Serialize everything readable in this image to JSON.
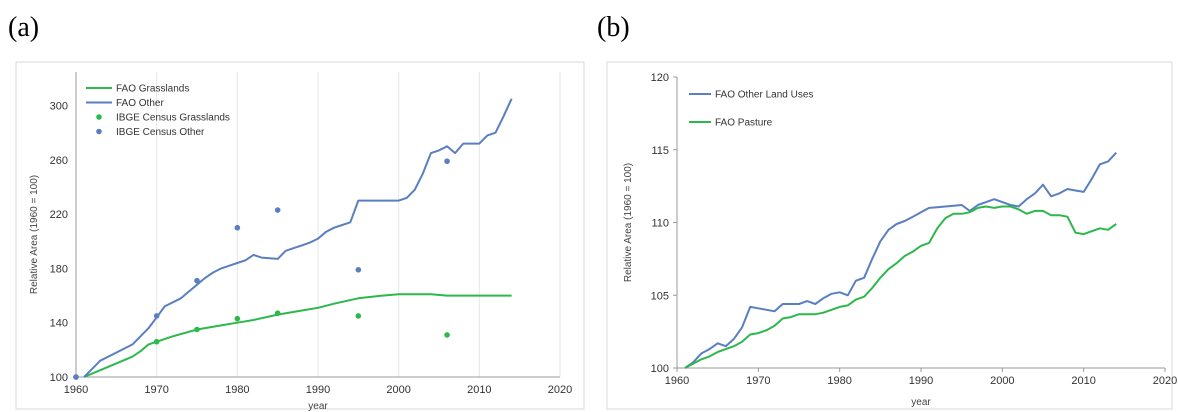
{
  "panels": {
    "a": {
      "label": "(a)"
    },
    "b": {
      "label": "(b)"
    }
  },
  "chart_data": [
    {
      "type": "line",
      "panel": "(a)",
      "xlabel": "year",
      "ylabel": "Relative Area (1960 = 100)",
      "xlim": [
        1960,
        2020
      ],
      "ylim": [
        100,
        310
      ],
      "xticks": [
        1960,
        1970,
        1980,
        1990,
        2000,
        2010,
        2020
      ],
      "yticks": [
        100,
        140,
        180,
        220,
        260,
        300
      ],
      "grid": "vertical",
      "legend_position": "top-left",
      "colors": {
        "green": "#2db84b",
        "blue": "#5a7fc0"
      },
      "series": [
        {
          "name": "FAO Grasslands",
          "kind": "line",
          "color": "#2db84b",
          "x": [
            1961,
            1963,
            1965,
            1967,
            1968,
            1969,
            1970,
            1972,
            1975,
            1978,
            1980,
            1982,
            1985,
            1988,
            1990,
            1992,
            1995,
            1998,
            2000,
            2002,
            2004,
            2006,
            2010,
            2014
          ],
          "y": [
            100,
            105,
            110,
            115,
            119,
            124,
            126,
            130,
            135,
            138,
            140,
            142,
            146,
            149,
            151,
            154,
            158,
            160,
            161,
            161,
            161,
            160,
            160,
            160
          ]
        },
        {
          "name": "FAO Other",
          "kind": "line",
          "color": "#5a7fc0",
          "x": [
            1961,
            1962,
            1963,
            1965,
            1967,
            1968,
            1969,
            1970,
            1971,
            1973,
            1974,
            1975,
            1976,
            1977,
            1978,
            1979,
            1980,
            1981,
            1982,
            1983,
            1985,
            1986,
            1987,
            1988,
            1989,
            1990,
            1991,
            1992,
            1993,
            1994,
            1995,
            1996,
            1998,
            2000,
            2001,
            2002,
            2003,
            2004,
            2005,
            2006,
            2007,
            2008,
            2010,
            2011,
            2012,
            2013,
            2014
          ],
          "y": [
            100,
            106,
            112,
            118,
            124,
            130,
            136,
            144,
            152,
            158,
            163,
            168,
            173,
            177,
            180,
            182,
            184,
            186,
            190,
            188,
            187,
            193,
            195,
            197,
            199,
            202,
            207,
            210,
            212,
            214,
            230,
            230,
            230,
            230,
            232,
            238,
            250,
            265,
            267,
            270,
            265,
            272,
            272,
            278,
            280,
            292,
            305
          ]
        },
        {
          "name": "IBGE Census Grasslands",
          "kind": "scatter",
          "color": "#2db84b",
          "x": [
            1960,
            1970,
            1975,
            1980,
            1985,
            1995,
            2006
          ],
          "y": [
            100,
            126,
            135,
            143,
            147,
            145,
            131
          ]
        },
        {
          "name": "IBGE Census Other",
          "kind": "scatter",
          "color": "#5a7fc0",
          "x": [
            1960,
            1970,
            1975,
            1980,
            1985,
            1995,
            2006
          ],
          "y": [
            100,
            145,
            171,
            210,
            223,
            179,
            259
          ]
        }
      ]
    },
    {
      "type": "line",
      "panel": "(b)",
      "xlabel": "year",
      "ylabel": "Relative Area (1960 = 100)",
      "xlim": [
        1960,
        2020
      ],
      "ylim": [
        100,
        120
      ],
      "xticks": [
        1960,
        1970,
        1980,
        1990,
        2000,
        2010,
        2020
      ],
      "yticks": [
        100,
        105,
        110,
        115,
        120
      ],
      "grid": "none",
      "legend_position": "top-left",
      "colors": {
        "green": "#2db84b",
        "blue": "#5a7fc0"
      },
      "series": [
        {
          "name": "FAO Other Land Uses",
          "kind": "line",
          "color": "#5a7fc0",
          "x": [
            1961,
            1962,
            1963,
            1964,
            1965,
            1966,
            1967,
            1968,
            1969,
            1970,
            1971,
            1972,
            1973,
            1974,
            1975,
            1976,
            1977,
            1978,
            1979,
            1980,
            1981,
            1982,
            1983,
            1984,
            1985,
            1986,
            1987,
            1988,
            1989,
            1990,
            1991,
            1992,
            1993,
            1994,
            1995,
            1996,
            1997,
            1998,
            1999,
            2000,
            2001,
            2002,
            2003,
            2004,
            2005,
            2006,
            2007,
            2008,
            2009,
            2010,
            2011,
            2012,
            2013,
            2014
          ],
          "y": [
            100,
            100.4,
            101,
            101.3,
            101.7,
            101.5,
            102,
            102.8,
            104.2,
            104.1,
            104,
            103.9,
            104.4,
            104.4,
            104.4,
            104.6,
            104.4,
            104.8,
            105.1,
            105.2,
            105,
            106,
            106.2,
            107.5,
            108.7,
            109.5,
            109.9,
            110.1,
            110.4,
            110.7,
            111,
            111.05,
            111.1,
            111.15,
            111.2,
            110.8,
            111.2,
            111.4,
            111.6,
            111.4,
            111.2,
            111.1,
            111.6,
            112,
            112.6,
            111.8,
            112,
            112.3,
            112.2,
            112.1,
            113,
            114,
            114.2,
            114.8
          ]
        },
        {
          "name": "FAO Pasture",
          "kind": "line",
          "color": "#2db84b",
          "x": [
            1961,
            1962,
            1963,
            1964,
            1965,
            1966,
            1967,
            1968,
            1969,
            1970,
            1971,
            1972,
            1973,
            1974,
            1975,
            1976,
            1977,
            1978,
            1979,
            1980,
            1981,
            1982,
            1983,
            1984,
            1985,
            1986,
            1987,
            1988,
            1989,
            1990,
            1991,
            1992,
            1993,
            1994,
            1995,
            1996,
            1997,
            1998,
            1999,
            2000,
            2001,
            2002,
            2003,
            2004,
            2005,
            2006,
            2007,
            2008,
            2009,
            2010,
            2011,
            2012,
            2013,
            2014
          ],
          "y": [
            100,
            100.3,
            100.6,
            100.8,
            101.1,
            101.3,
            101.5,
            101.8,
            102.3,
            102.4,
            102.6,
            102.9,
            103.4,
            103.5,
            103.7,
            103.7,
            103.7,
            103.8,
            104,
            104.2,
            104.3,
            104.7,
            104.9,
            105.5,
            106.2,
            106.8,
            107.2,
            107.7,
            108,
            108.4,
            108.6,
            109.6,
            110.3,
            110.6,
            110.6,
            110.7,
            111,
            111.1,
            111,
            111.1,
            111.1,
            110.9,
            110.6,
            110.8,
            110.8,
            110.5,
            110.5,
            110.4,
            109.3,
            109.2,
            109.4,
            109.6,
            109.5,
            109.9
          ]
        }
      ]
    }
  ]
}
